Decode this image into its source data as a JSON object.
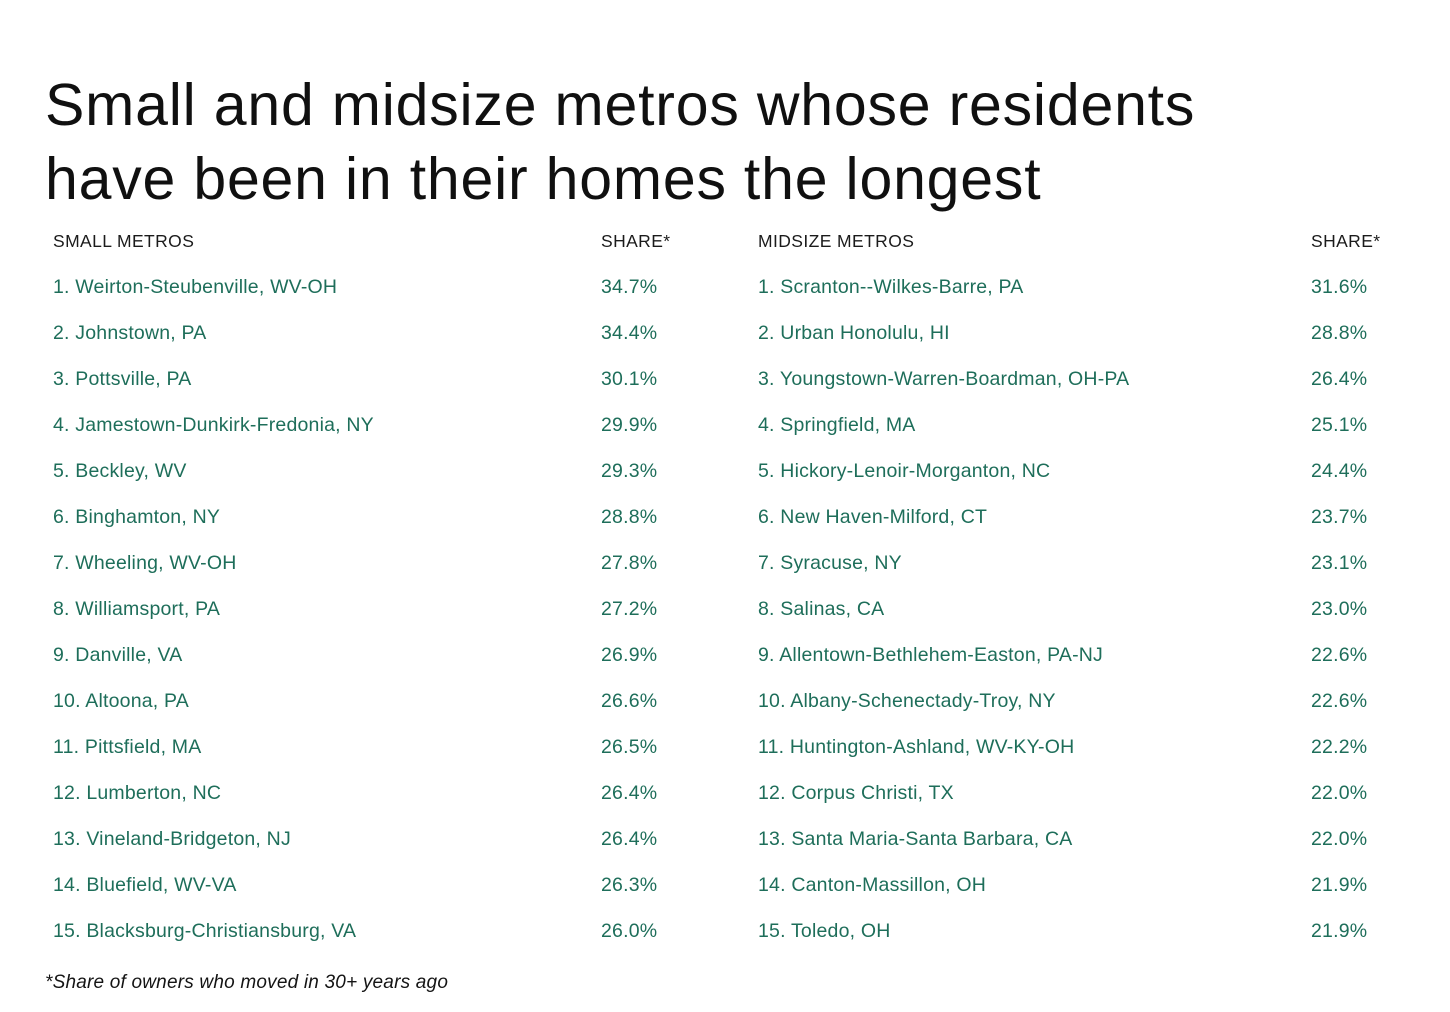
{
  "title": {
    "line1": "Small and midsize metros whose residents",
    "line2": "have been in their homes the longest",
    "full": "Small and midsize metros whose residents have been in their homes the longest"
  },
  "footnote": "*Share of owners who moved in 30+ years ago",
  "colors": {
    "accent_green": "#1e6e5a",
    "text_dark": "#141414",
    "background": "#ffffff"
  },
  "table": {
    "left": {
      "header_label": "SMALL METROS",
      "share_label": "SHARE*",
      "rows": [
        {
          "label": "1. Weirton-Steubenville, WV-OH",
          "share": "34.7%"
        },
        {
          "label": "2. Johnstown, PA",
          "share": "34.4%"
        },
        {
          "label": "3. Pottsville, PA",
          "share": "30.1%"
        },
        {
          "label": "4. Jamestown-Dunkirk-Fredonia, NY",
          "share": "29.9%"
        },
        {
          "label": "5. Beckley, WV",
          "share": "29.3%"
        },
        {
          "label": "6. Binghamton, NY",
          "share": "28.8%"
        },
        {
          "label": "7. Wheeling, WV-OH",
          "share": "27.8%"
        },
        {
          "label": "8. Williamsport, PA",
          "share": "27.2%"
        },
        {
          "label": "9. Danville, VA",
          "share": "26.9%"
        },
        {
          "label": "10. Altoona, PA",
          "share": "26.6%"
        },
        {
          "label": "11. Pittsfield, MA",
          "share": "26.5%"
        },
        {
          "label": "12. Lumberton, NC",
          "share": "26.4%"
        },
        {
          "label": "13. Vineland-Bridgeton, NJ",
          "share": "26.4%"
        },
        {
          "label": "14. Bluefield, WV-VA",
          "share": "26.3%"
        },
        {
          "label": "15. Blacksburg-Christiansburg, VA",
          "share": "26.0%"
        }
      ]
    },
    "right": {
      "header_label": "MIDSIZE METROS",
      "share_label": "SHARE*",
      "rows": [
        {
          "label": "1. Scranton--Wilkes-Barre, PA",
          "share": "31.6%"
        },
        {
          "label": "2. Urban Honolulu, HI",
          "share": "28.8%"
        },
        {
          "label": "3. Youngstown-Warren-Boardman, OH-PA",
          "share": "26.4%"
        },
        {
          "label": "4. Springfield, MA",
          "share": "25.1%"
        },
        {
          "label": "5. Hickory-Lenoir-Morganton, NC",
          "share": "24.4%"
        },
        {
          "label": "6. New Haven-Milford, CT",
          "share": "23.7%"
        },
        {
          "label": "7. Syracuse, NY",
          "share": "23.1%"
        },
        {
          "label": "8. Salinas, CA",
          "share": "23.0%"
        },
        {
          "label": "9. Allentown-Bethlehem-Easton, PA-NJ",
          "share": "22.6%"
        },
        {
          "label": "10. Albany-Schenectady-Troy, NY",
          "share": "22.6%"
        },
        {
          "label": "11. Huntington-Ashland, WV-KY-OH",
          "share": "22.2%"
        },
        {
          "label": "12. Corpus Christi, TX",
          "share": "22.0%"
        },
        {
          "label": "13. Santa Maria-Santa Barbara, CA",
          "share": "22.0%"
        },
        {
          "label": "14. Canton-Massillon, OH",
          "share": "21.9%"
        },
        {
          "label": "15. Toledo, OH",
          "share": "21.9%"
        }
      ]
    }
  },
  "chart_data": {
    "type": "table",
    "title": "Small and midsize metros whose residents have been in their homes the longest",
    "footnote": "*Share of owners who moved in 30+ years ago",
    "tables": [
      {
        "name": "SMALL METROS",
        "value_label": "SHARE*",
        "categories": [
          "Weirton-Steubenville, WV-OH",
          "Johnstown, PA",
          "Pottsville, PA",
          "Jamestown-Dunkirk-Fredonia, NY",
          "Beckley, WV",
          "Binghamton, NY",
          "Wheeling, WV-OH",
          "Williamsport, PA",
          "Danville, VA",
          "Altoona, PA",
          "Pittsfield, MA",
          "Lumberton, NC",
          "Vineland-Bridgeton, NJ",
          "Bluefield, WV-VA",
          "Blacksburg-Christiansburg, VA"
        ],
        "values": [
          34.7,
          34.4,
          30.1,
          29.9,
          29.3,
          28.8,
          27.8,
          27.2,
          26.9,
          26.6,
          26.5,
          26.4,
          26.4,
          26.3,
          26.0
        ]
      },
      {
        "name": "MIDSIZE METROS",
        "value_label": "SHARE*",
        "categories": [
          "Scranton--Wilkes-Barre, PA",
          "Urban Honolulu, HI",
          "Youngstown-Warren-Boardman, OH-PA",
          "Springfield, MA",
          "Hickory-Lenoir-Morganton, NC",
          "New Haven-Milford, CT",
          "Syracuse, NY",
          "Salinas, CA",
          "Allentown-Bethlehem-Easton, PA-NJ",
          "Albany-Schenectady-Troy, NY",
          "Huntington-Ashland, WV-KY-OH",
          "Corpus Christi, TX",
          "Santa Maria-Santa Barbara, CA",
          "Canton-Massillon, OH",
          "Toledo, OH"
        ],
        "values": [
          31.6,
          28.8,
          26.4,
          25.1,
          24.4,
          23.7,
          23.1,
          23.0,
          22.6,
          22.6,
          22.2,
          22.0,
          22.0,
          21.9,
          21.9
        ]
      }
    ]
  }
}
